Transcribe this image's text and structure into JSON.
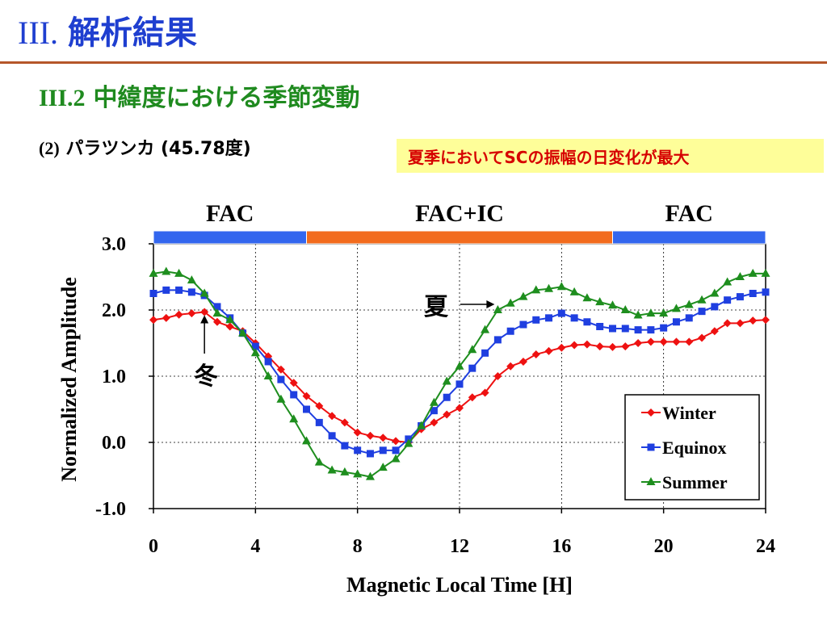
{
  "slide": {
    "title_roman": "III.",
    "title_text": "解析結果",
    "section_num": "III.2",
    "section_text": "中緯度における季節変動",
    "station_prefix": "(2)",
    "station_name": "パラツンカ",
    "station_lat": "(45.78度)",
    "note": "夏季においてSCの振幅の日変化が最大"
  },
  "colors": {
    "title": "#1f3fd0",
    "section": "#1f8a1f",
    "rule": "#b5562a",
    "note_bg": "#fefe99",
    "note_text": "#d60000",
    "fac_bar": "#3366ee",
    "facic_bar": "#f26b1d"
  },
  "chart_data": {
    "type": "line",
    "xlabel": "Magnetic Local Time [H]",
    "ylabel": "Normalized Amplitude",
    "xlim": [
      0,
      24
    ],
    "ylim": [
      -1.0,
      3.0
    ],
    "xticks": [
      0,
      4,
      8,
      12,
      16,
      20,
      24
    ],
    "yticks": [
      -1.0,
      0.0,
      1.0,
      2.0,
      3.0
    ],
    "ytick_labels": [
      "-1.0",
      "0.0",
      "1.0",
      "2.0",
      "3.0"
    ],
    "grid": true,
    "legend_position": "bottom-right",
    "x": [
      0,
      0.5,
      1,
      1.5,
      2,
      2.5,
      3,
      3.5,
      4,
      4.5,
      5,
      5.5,
      6,
      6.5,
      7,
      7.5,
      8,
      8.5,
      9,
      9.5,
      10,
      10.5,
      11,
      11.5,
      12,
      12.5,
      13,
      13.5,
      14,
      14.5,
      15,
      15.5,
      16,
      16.5,
      17,
      17.5,
      18,
      18.5,
      19,
      19.5,
      20,
      20.5,
      21,
      21.5,
      22,
      22.5,
      23,
      23.5,
      24
    ],
    "series": [
      {
        "name": "Winter",
        "color": "#ee1111",
        "marker": "diamond",
        "values": [
          1.85,
          1.88,
          1.93,
          1.95,
          1.97,
          1.82,
          1.75,
          1.68,
          1.5,
          1.3,
          1.1,
          0.9,
          0.7,
          0.55,
          0.4,
          0.3,
          0.15,
          0.1,
          0.07,
          0.02,
          0.0,
          0.2,
          0.3,
          0.42,
          0.52,
          0.68,
          0.75,
          1.0,
          1.15,
          1.22,
          1.33,
          1.38,
          1.43,
          1.47,
          1.48,
          1.45,
          1.44,
          1.45,
          1.5,
          1.52,
          1.52,
          1.52,
          1.52,
          1.58,
          1.68,
          1.8,
          1.8,
          1.84,
          1.85
        ]
      },
      {
        "name": "Equinox",
        "color": "#1f3fe0",
        "marker": "square",
        "values": [
          2.25,
          2.3,
          2.3,
          2.27,
          2.22,
          2.05,
          1.88,
          1.65,
          1.45,
          1.22,
          0.95,
          0.72,
          0.5,
          0.3,
          0.1,
          -0.05,
          -0.12,
          -0.17,
          -0.12,
          -0.12,
          0.05,
          0.25,
          0.48,
          0.68,
          0.88,
          1.12,
          1.35,
          1.55,
          1.68,
          1.78,
          1.85,
          1.88,
          1.95,
          1.88,
          1.82,
          1.75,
          1.72,
          1.72,
          1.7,
          1.7,
          1.73,
          1.82,
          1.88,
          1.98,
          2.05,
          2.15,
          2.2,
          2.25,
          2.27
        ]
      },
      {
        "name": "Summer",
        "color": "#1e8e1e",
        "marker": "triangle",
        "values": [
          2.55,
          2.58,
          2.55,
          2.45,
          2.25,
          1.95,
          1.85,
          1.65,
          1.35,
          1.0,
          0.65,
          0.35,
          0.02,
          -0.3,
          -0.42,
          -0.45,
          -0.48,
          -0.52,
          -0.38,
          -0.25,
          -0.02,
          0.25,
          0.6,
          0.92,
          1.15,
          1.4,
          1.7,
          2.0,
          2.1,
          2.2,
          2.3,
          2.32,
          2.35,
          2.27,
          2.18,
          2.12,
          2.07,
          2.0,
          1.92,
          1.95,
          1.95,
          2.02,
          2.08,
          2.15,
          2.25,
          2.42,
          2.5,
          2.55,
          2.55
        ]
      }
    ],
    "region_bar": [
      {
        "label": "FAC",
        "from": 0,
        "to": 6,
        "color": "#3366ee"
      },
      {
        "label": "FAC+IC",
        "from": 6,
        "to": 18,
        "color": "#f26b1d"
      },
      {
        "label": "FAC",
        "from": 18,
        "to": 24,
        "color": "#3366ee"
      }
    ],
    "annotations": [
      {
        "text": "夏",
        "series": "Summer",
        "x": 13.5
      },
      {
        "text": "冬",
        "series": "Winter",
        "x": 2
      }
    ]
  }
}
